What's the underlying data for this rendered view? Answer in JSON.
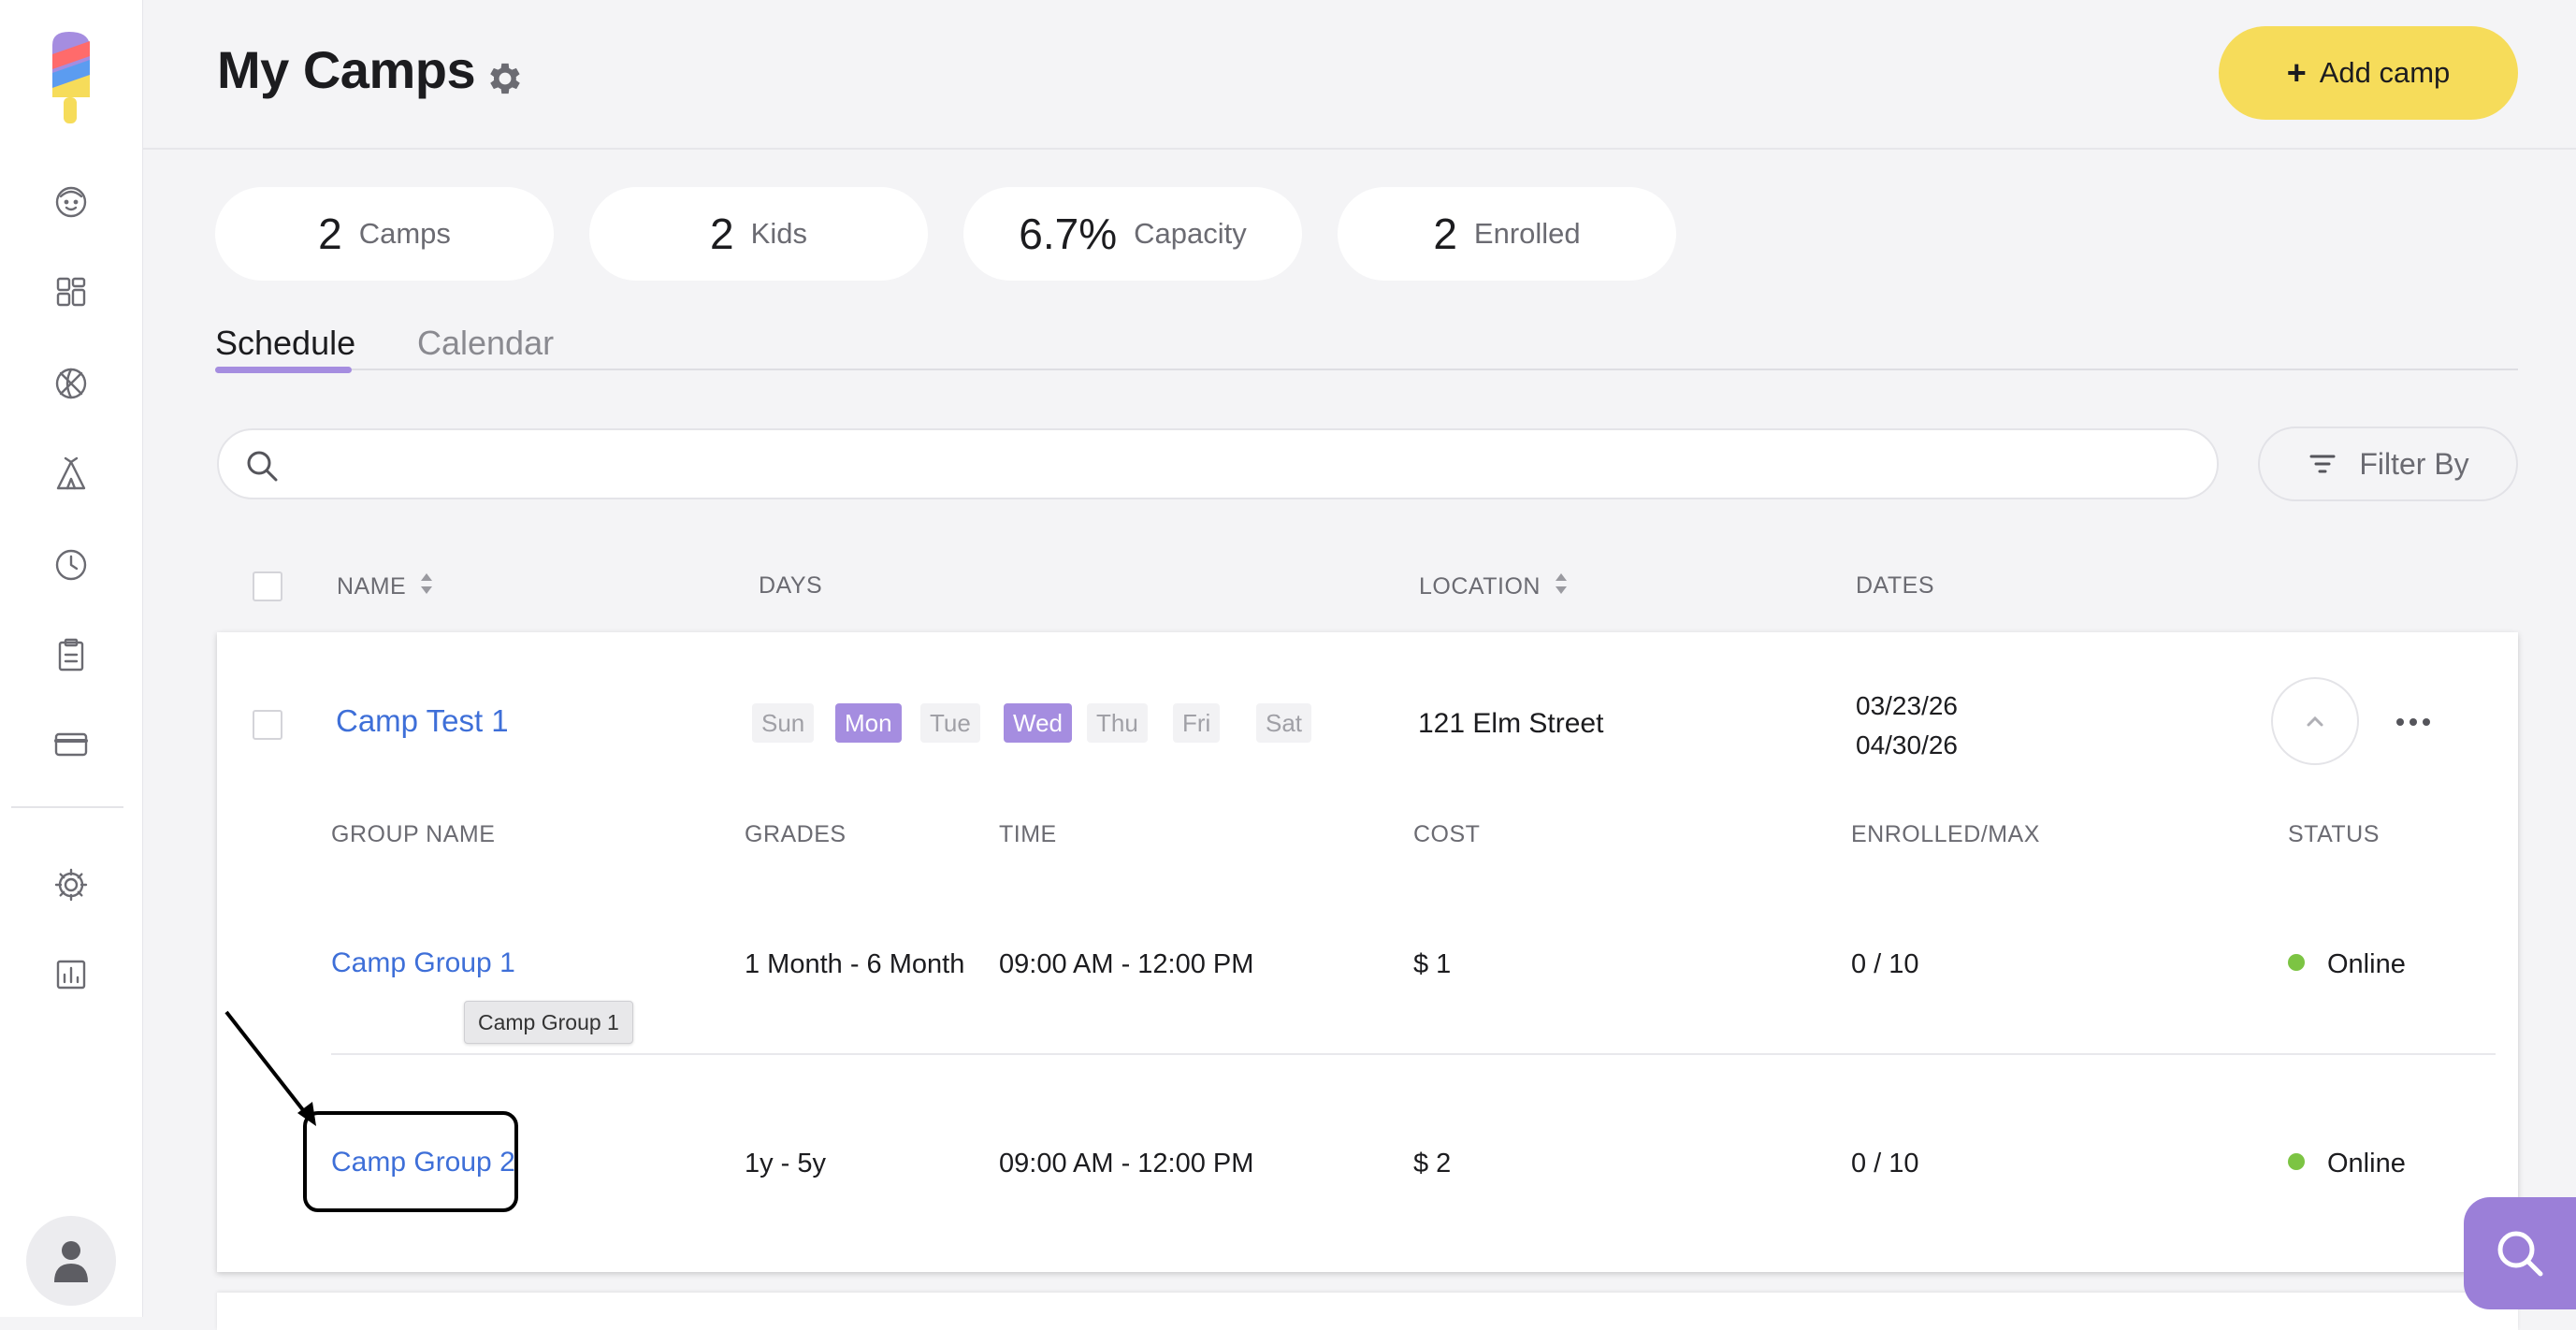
{
  "header": {
    "title": "My Camps",
    "add_button": "Add camp",
    "add_plus": "+"
  },
  "stats": [
    {
      "value": "2",
      "label": "Camps"
    },
    {
      "value": "2",
      "label": "Kids"
    },
    {
      "value": "6.7%",
      "label": "Capacity"
    },
    {
      "value": "2",
      "label": "Enrolled"
    }
  ],
  "tabs": {
    "schedule": "Schedule",
    "calendar": "Calendar"
  },
  "search": {
    "placeholder": ""
  },
  "filter": {
    "label": "Filter By"
  },
  "table_headers": {
    "name": "NAME",
    "days": "DAYS",
    "location": "LOCATION",
    "dates": "DATES"
  },
  "camp": {
    "name": "Camp Test 1",
    "days": [
      {
        "label": "Sun",
        "active": false
      },
      {
        "label": "Mon",
        "active": true
      },
      {
        "label": "Tue",
        "active": false
      },
      {
        "label": "Wed",
        "active": true
      },
      {
        "label": "Thu",
        "active": false
      },
      {
        "label": "Fri",
        "active": false
      },
      {
        "label": "Sat",
        "active": false
      }
    ],
    "location": "121 Elm Street",
    "start_date": "03/23/26",
    "end_date": "04/30/26"
  },
  "group_headers": {
    "group_name": "GROUP NAME",
    "grades": "GRADES",
    "time": "TIME",
    "cost": "COST",
    "enrolled": "ENROLLED/MAX",
    "status": "STATUS"
  },
  "groups": [
    {
      "name": "Camp Group 1",
      "grades": "1 Month - 6 Month",
      "time": "09:00 AM - 12:00 PM",
      "cost": "$ 1",
      "enrolled": "0 / 10",
      "status": "Online"
    },
    {
      "name": "Camp Group 2",
      "grades": "1y - 5y",
      "time": "09:00 AM - 12:00 PM",
      "cost": "$ 2",
      "enrolled": "0 / 10",
      "status": "Online"
    }
  ],
  "tooltip": "Camp Group 1",
  "colors": {
    "accent": "#a58de0",
    "brand_yellow": "#f6dc5a",
    "link": "#3e6fd8",
    "online": "#7cc443",
    "help": "#9b7fd8"
  }
}
